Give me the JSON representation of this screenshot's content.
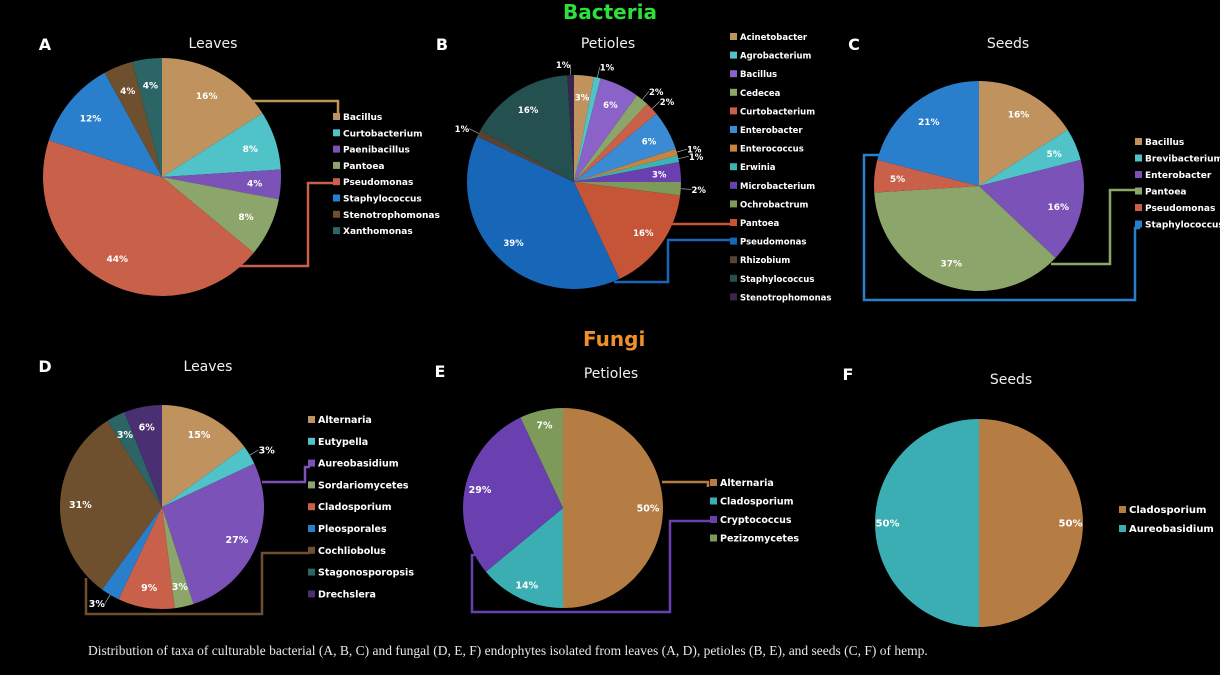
{
  "sections": {
    "bacteria": {
      "title": "Bacteria",
      "color": "#2ee03a"
    },
    "fungi": {
      "title": "Fungi",
      "color": "#f0902a"
    }
  },
  "caption": "Distribution of taxa of culturable bacterial (A, B, C) and fungal (D, E, F) endophytes isolated from leaves (A, D), petioles (B, E), and seeds (C, F) of hemp.",
  "chart_data": [
    {
      "id": "A",
      "panel_letter": "A",
      "type": "pie",
      "title": "Leaves",
      "group": "Bacteria",
      "legend_position": "right",
      "categories": [
        "Bacillus",
        "Curtobacterium",
        "Paenibacillus",
        "Pantoea",
        "Pseudomonas",
        "Staphylococcus",
        "Stenotrophomonas",
        "Xanthomonas"
      ],
      "values": [
        16,
        8,
        4,
        8,
        44,
        12,
        4,
        4
      ],
      "labels": [
        "16%",
        "8%",
        "4%",
        "8%",
        "44%",
        "12%",
        "4%",
        "4%"
      ],
      "colors": [
        "#c0935e",
        "#4fc3c8",
        "#7b52b8",
        "#8ca56a",
        "#c9604a",
        "#2a7fcc",
        "#6e4f2e",
        "#2b6566"
      ],
      "callouts": [
        "Bacillus",
        "Pseudomonas"
      ]
    },
    {
      "id": "B",
      "panel_letter": "B",
      "type": "pie",
      "title": "Petioles",
      "group": "Bacteria",
      "legend_position": "right",
      "categories": [
        "Acinetobacter",
        "Agrobacterium",
        "Bacillus",
        "Cedecea",
        "Curtobacterium",
        "Enterobacter",
        "Enterococcus",
        "Erwinia",
        "Microbacterium",
        "Ochrobactrum",
        "Pantoea",
        "Pseudomonas",
        "Rhizobium",
        "Staphylococcus",
        "Stenotrophomonas"
      ],
      "values": [
        3,
        1,
        6,
        2,
        2,
        6,
        1,
        1,
        3,
        2,
        16,
        39,
        1,
        16,
        1
      ],
      "labels": [
        "3%",
        "1%",
        "6%",
        "2%",
        "2%",
        "6%",
        "1%",
        "1%",
        "3%",
        "2%",
        "16%",
        "39%",
        "1%",
        "16%",
        "1%"
      ],
      "colors": [
        "#c0935e",
        "#4fc3c8",
        "#8a62c8",
        "#8ca56a",
        "#c9604a",
        "#3a8ad4",
        "#c7843f",
        "#3bb3b3",
        "#6a3fb0",
        "#7d9a5a",
        "#c65538",
        "#1766b8",
        "#5a4230",
        "#24504f",
        "#3a2550"
      ],
      "callouts": [
        "Pantoea",
        "Pseudomonas"
      ]
    },
    {
      "id": "C",
      "panel_letter": "C",
      "type": "pie",
      "title": "Seeds",
      "group": "Bacteria",
      "legend_position": "right",
      "categories": [
        "Bacillus",
        "Brevibacterium",
        "Enterobacter",
        "Pantoea",
        "Pseudomonas",
        "Staphylococcus"
      ],
      "values": [
        16,
        5,
        16,
        37,
        5,
        21
      ],
      "labels": [
        "16%",
        "5%",
        "16%",
        "37%",
        "5%",
        "21%"
      ],
      "colors": [
        "#c0935e",
        "#4fc3c8",
        "#7b52b8",
        "#8ca56a",
        "#c9604a",
        "#2a7fcc"
      ],
      "callouts": [
        "Pantoea",
        "Staphylococcus"
      ]
    },
    {
      "id": "D",
      "panel_letter": "D",
      "type": "pie",
      "title": "Leaves",
      "group": "Fungi",
      "legend_position": "right",
      "categories": [
        "Alternaria",
        "Eutypella",
        "Aureobasidium",
        "Sordariomycetes",
        "Cladosporium",
        "Pleosporales",
        "Cochliobolus",
        "Stagonosporopsis",
        "Drechslera"
      ],
      "values": [
        15,
        3,
        27,
        3,
        9,
        3,
        31,
        3,
        6
      ],
      "labels": [
        "15%",
        "3%",
        "27%",
        "3%",
        "9%",
        "3%",
        "31%",
        "3%",
        "6%"
      ],
      "colors": [
        "#c0935e",
        "#4fc3c8",
        "#7b52b8",
        "#8ca56a",
        "#c9604a",
        "#2a7fcc",
        "#6e4f2e",
        "#2b6566",
        "#4a2f72"
      ],
      "callouts": [
        "Aureobasidium",
        "Cochliobolus"
      ]
    },
    {
      "id": "E",
      "panel_letter": "E",
      "type": "pie",
      "title": "Petioles",
      "group": "Fungi",
      "legend_position": "right",
      "categories": [
        "Alternaria",
        "Cladosporium",
        "Cryptococcus",
        "Pezizomycetes"
      ],
      "values": [
        50,
        14,
        29,
        7
      ],
      "labels": [
        "50%",
        "14%",
        "29%",
        "7%"
      ],
      "colors": [
        "#b57d43",
        "#3aaeb2",
        "#6a3fb0",
        "#7d9a5a"
      ],
      "callouts": [
        "Alternaria",
        "Cryptococcus"
      ]
    },
    {
      "id": "F",
      "panel_letter": "F",
      "type": "pie",
      "title": "Seeds",
      "group": "Fungi",
      "legend_position": "right",
      "categories": [
        "Cladosporium",
        "Aureobasidium"
      ],
      "values": [
        50,
        50
      ],
      "labels": [
        "50%",
        "50%"
      ],
      "colors": [
        "#b57d43",
        "#3aaeb2"
      ],
      "callouts": []
    }
  ]
}
